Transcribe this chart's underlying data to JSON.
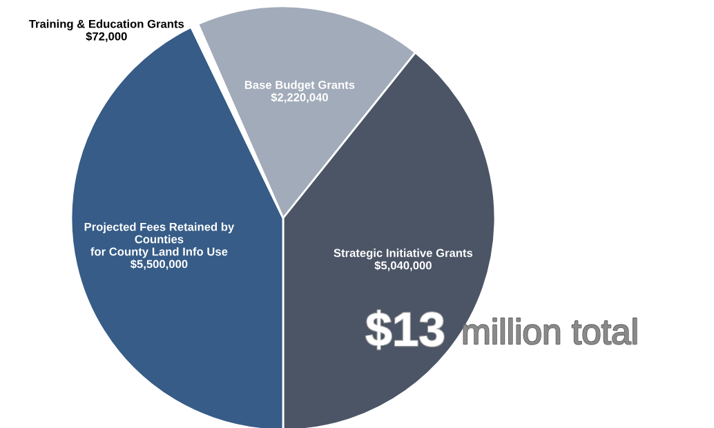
{
  "chart_data": {
    "type": "pie",
    "categories": [
      "Base Budget Grants",
      "Strategic Initiative Grants",
      "Projected Fees Retained by\nCounties\nfor County Land Info Use",
      "Training & Education Grants"
    ],
    "values": [
      2220040,
      5040000,
      5500000,
      72000
    ],
    "value_labels": [
      "$2,220,040",
      "$5,040,000",
      "$5,500,000",
      "$72,000"
    ],
    "colors": [
      "#a2abb9",
      "#4c5566",
      "#365c87",
      "#ffffff"
    ],
    "annotations": [
      "$13",
      "million total"
    ],
    "legend": false
  }
}
